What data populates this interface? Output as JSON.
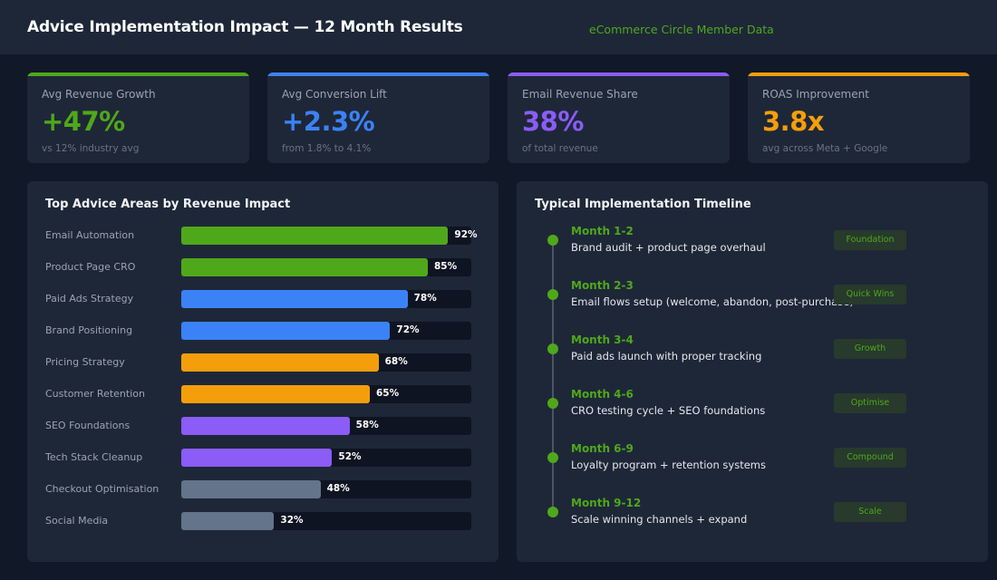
{
  "header": {
    "title": "Advice Implementation Impact — 12 Month Results",
    "subtitle": "eCommerce Circle Member Data"
  },
  "colors": {
    "green": "#4fa81a",
    "blue": "#3b82f6",
    "purple": "#8b5cf6",
    "orange": "#f59e0b",
    "gray": "#64748b"
  },
  "kpis": [
    {
      "label": "Avg Revenue Growth",
      "value": "+47%",
      "note": "vs 12% industry avg",
      "color": "#4fa81a"
    },
    {
      "label": "Avg Conversion Lift",
      "value": "+2.3%",
      "note": "from 1.8% to 4.1%",
      "color": "#3b82f6"
    },
    {
      "label": "Email Revenue Share",
      "value": "38%",
      "note": "of total revenue",
      "color": "#8b5cf6"
    },
    {
      "label": "ROAS Improvement",
      "value": "3.8x",
      "note": "avg across Meta + Google",
      "color": "#f59e0b"
    }
  ],
  "chart_data": {
    "type": "bar",
    "orientation": "horizontal",
    "title": "Top Advice Areas by Revenue Impact",
    "categories": [
      "Email Automation",
      "Product Page CRO",
      "Paid Ads Strategy",
      "Brand Positioning",
      "Pricing Strategy",
      "Customer Retention",
      "SEO Foundations",
      "Tech Stack Cleanup",
      "Checkout Optimisation",
      "Social Media"
    ],
    "values": [
      92,
      85,
      78,
      72,
      68,
      65,
      58,
      52,
      48,
      32
    ],
    "value_labels": [
      "92%",
      "85%",
      "78%",
      "72%",
      "68%",
      "65%",
      "58%",
      "52%",
      "48%",
      "32%"
    ],
    "colors": [
      "#4fa81a",
      "#4fa81a",
      "#3b82f6",
      "#3b82f6",
      "#f59e0b",
      "#f59e0b",
      "#8b5cf6",
      "#8b5cf6",
      "#64748b",
      "#64748b"
    ],
    "xlim": [
      0,
      100
    ],
    "grid": false
  },
  "timeline": {
    "title": "Typical Implementation Timeline",
    "items": [
      {
        "month": "Month 1-2",
        "desc": "Brand audit + product page overhaul",
        "badge": "Foundation"
      },
      {
        "month": "Month 2-3",
        "desc": "Email flows setup (welcome, abandon, post-purchase)",
        "badge": "Quick Wins"
      },
      {
        "month": "Month 3-4",
        "desc": "Paid ads launch with proper tracking",
        "badge": "Growth"
      },
      {
        "month": "Month 4-6",
        "desc": "CRO testing cycle + SEO foundations",
        "badge": "Optimise"
      },
      {
        "month": "Month 6-9",
        "desc": "Loyalty program + retention systems",
        "badge": "Compound"
      },
      {
        "month": "Month 9-12",
        "desc": "Scale winning channels + expand",
        "badge": "Scale"
      }
    ]
  }
}
